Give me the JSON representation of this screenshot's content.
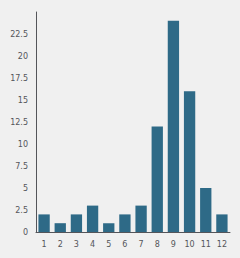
{
  "chart_data": {
    "type": "bar",
    "categories": [
      "1",
      "2",
      "3",
      "4",
      "5",
      "6",
      "7",
      "8",
      "9",
      "10",
      "11",
      "12"
    ],
    "values": [
      2,
      1,
      2,
      3,
      1,
      2,
      3,
      12,
      24,
      16,
      5,
      2
    ],
    "color": "#2e6a87",
    "ylim": [
      0,
      25
    ],
    "yticks": [
      0,
      2.5,
      5,
      7.5,
      10,
      12.5,
      15,
      17.5,
      20,
      22.5
    ],
    "grid": false
  }
}
